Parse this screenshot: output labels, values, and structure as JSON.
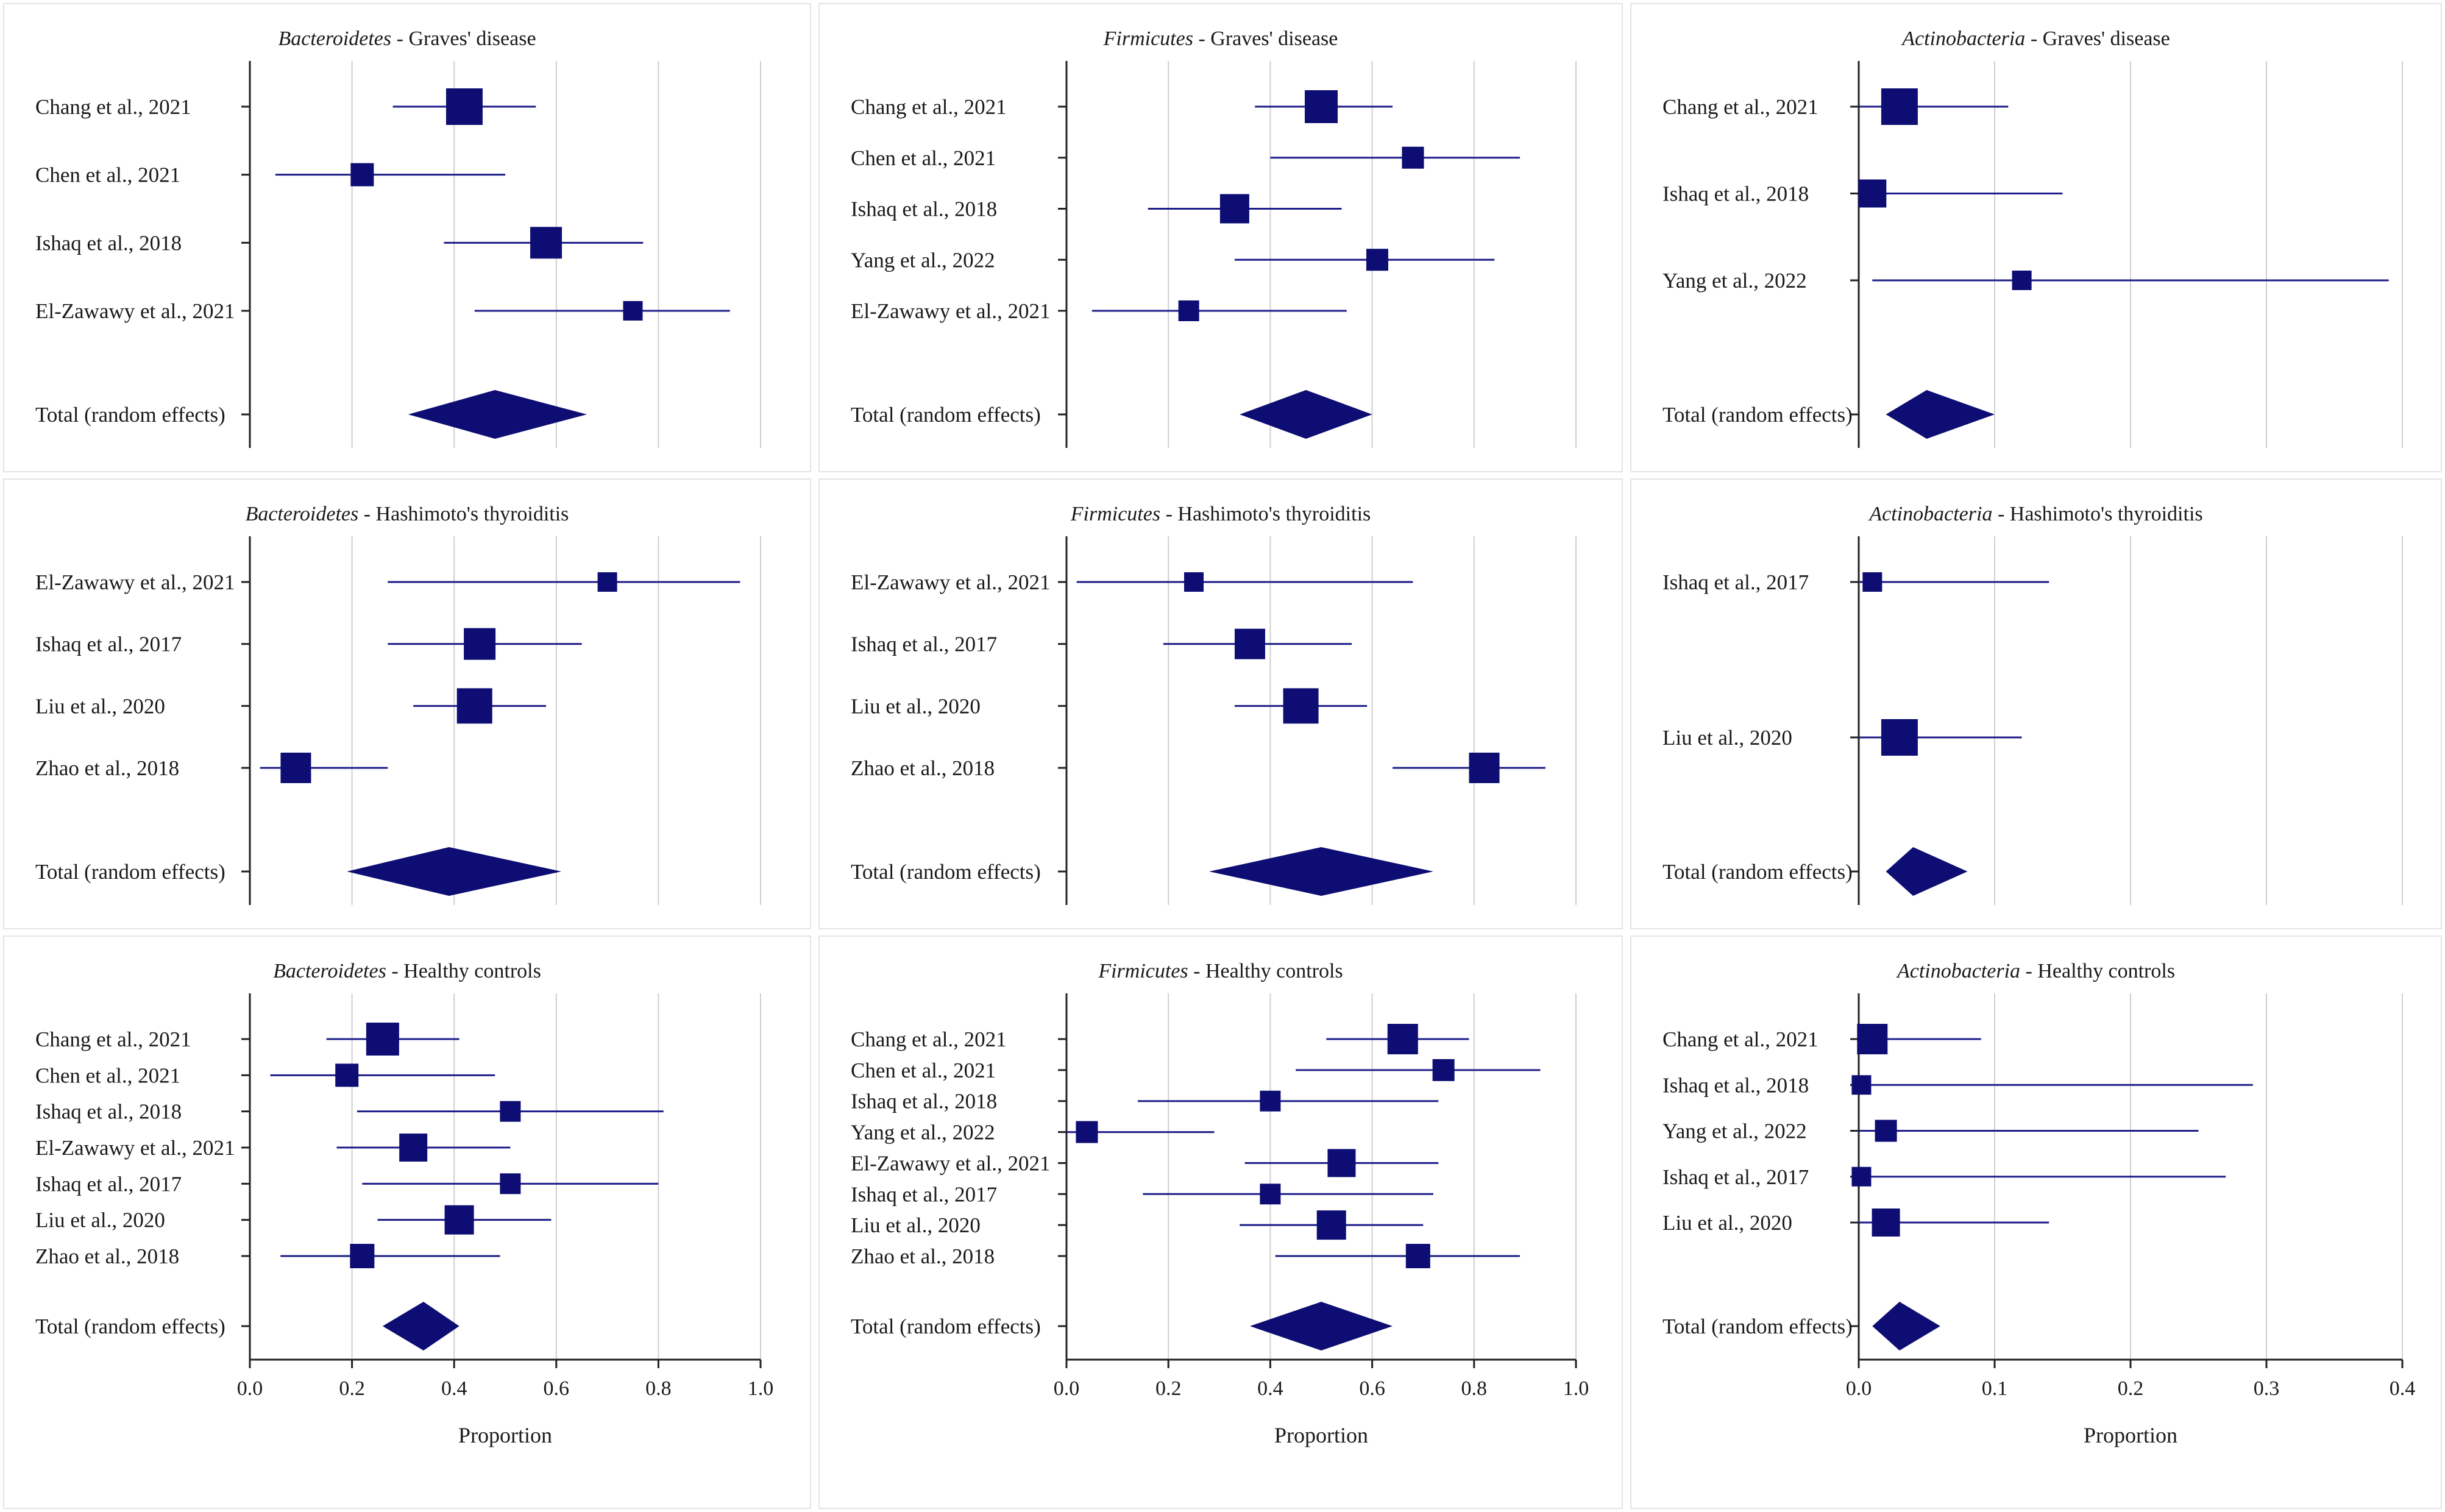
{
  "colors": {
    "mark": "#0d0d73",
    "whisker": "#1d1d8a",
    "grid": "#cfcfcf",
    "axis": "#222222",
    "panel_border": "#e4e4e4"
  },
  "chart_data": [
    {
      "type": "forest",
      "title_taxon": "Bacteroidetes",
      "title_group": " - Graves' disease",
      "xlabel": "",
      "xlim": [
        0,
        1
      ],
      "xticks": [
        0,
        0.2,
        0.4,
        0.6,
        0.8,
        1
      ],
      "studies": [
        {
          "label": "Chang et al., 2021",
          "estimate": 0.42,
          "ci": [
            0.28,
            0.56
          ],
          "weight": 1.0
        },
        {
          "label": "Chen et al., 2021",
          "estimate": 0.22,
          "ci": [
            0.05,
            0.5
          ],
          "weight": 0.45
        },
        {
          "label": "Ishaq et al., 2018",
          "estimate": 0.58,
          "ci": [
            0.38,
            0.77
          ],
          "weight": 0.8
        },
        {
          "label": "El-Zawawy et al., 2021",
          "estimate": 0.75,
          "ci": [
            0.44,
            0.94
          ],
          "weight": 0.3
        }
      ],
      "total": {
        "label": "Total (random effects)",
        "estimate": 0.48,
        "ci": [
          0.31,
          0.66
        ]
      }
    },
    {
      "type": "forest",
      "title_taxon": "Firmicutes",
      "title_group": " - Graves' disease",
      "xlabel": "",
      "xlim": [
        0,
        1
      ],
      "xticks": [
        0,
        0.2,
        0.4,
        0.6,
        0.8,
        1
      ],
      "studies": [
        {
          "label": "Chang et al., 2021",
          "estimate": 0.5,
          "ci": [
            0.37,
            0.64
          ],
          "weight": 0.85
        },
        {
          "label": "Chen et al., 2021",
          "estimate": 0.68,
          "ci": [
            0.4,
            0.89
          ],
          "weight": 0.4
        },
        {
          "label": "Ishaq et al., 2018",
          "estimate": 0.33,
          "ci": [
            0.16,
            0.54
          ],
          "weight": 0.7
        },
        {
          "label": "Yang et al., 2022",
          "estimate": 0.61,
          "ci": [
            0.33,
            0.84
          ],
          "weight": 0.4
        },
        {
          "label": "El-Zawawy et al., 2021",
          "estimate": 0.24,
          "ci": [
            0.05,
            0.55
          ],
          "weight": 0.35
        }
      ],
      "total": {
        "label": "Total (random effects)",
        "estimate": 0.47,
        "ci": [
          0.34,
          0.6
        ]
      }
    },
    {
      "type": "forest",
      "title_taxon": "Actinobacteria",
      "title_group": " - Graves' disease",
      "xlabel": "",
      "xlim": [
        0,
        0.4
      ],
      "xticks": [
        0,
        0.1,
        0.2,
        0.3,
        0.4
      ],
      "studies": [
        {
          "label": "Chang et al., 2021",
          "estimate": 0.03,
          "ci": [
            0.0,
            0.11
          ],
          "weight": 1.0
        },
        {
          "label": "Ishaq et al., 2018",
          "estimate": 0.01,
          "ci": [
            0.0,
            0.15
          ],
          "weight": 0.65
        },
        {
          "label": "Yang et al., 2022",
          "estimate": 0.12,
          "ci": [
            0.01,
            0.39
          ],
          "weight": 0.3
        }
      ],
      "total": {
        "label": "Total (random effects)",
        "estimate": 0.05,
        "ci": [
          0.02,
          0.1
        ]
      }
    },
    {
      "type": "forest",
      "title_taxon": "Bacteroidetes",
      "title_group": " - Hashimoto's thyroiditis",
      "xlabel": "",
      "xlim": [
        0,
        1
      ],
      "xticks": [
        0,
        0.2,
        0.4,
        0.6,
        0.8,
        1
      ],
      "studies": [
        {
          "label": "El-Zawawy et al., 2021",
          "estimate": 0.7,
          "ci": [
            0.27,
            0.96
          ],
          "weight": 0.3
        },
        {
          "label": "Ishaq et al., 2017",
          "estimate": 0.45,
          "ci": [
            0.27,
            0.65
          ],
          "weight": 0.8
        },
        {
          "label": "Liu et al., 2020",
          "estimate": 0.44,
          "ci": [
            0.32,
            0.58
          ],
          "weight": 0.95
        },
        {
          "label": "Zhao et al., 2018",
          "estimate": 0.09,
          "ci": [
            0.02,
            0.27
          ],
          "weight": 0.75
        }
      ],
      "total": {
        "label": "Total (random effects)",
        "estimate": 0.39,
        "ci": [
          0.19,
          0.61
        ]
      }
    },
    {
      "type": "forest",
      "title_taxon": "Firmicutes",
      "title_group": " - Hashimoto's thyroiditis",
      "xlabel": "",
      "xlim": [
        0,
        1
      ],
      "xticks": [
        0,
        0.2,
        0.4,
        0.6,
        0.8,
        1
      ],
      "studies": [
        {
          "label": "El-Zawawy et al., 2021",
          "estimate": 0.25,
          "ci": [
            0.02,
            0.68
          ],
          "weight": 0.3
        },
        {
          "label": "Ishaq et al., 2017",
          "estimate": 0.36,
          "ci": [
            0.19,
            0.56
          ],
          "weight": 0.75
        },
        {
          "label": "Liu et al., 2020",
          "estimate": 0.46,
          "ci": [
            0.33,
            0.59
          ],
          "weight": 0.95
        },
        {
          "label": "Zhao et al., 2018",
          "estimate": 0.82,
          "ci": [
            0.64,
            0.94
          ],
          "weight": 0.75
        }
      ],
      "total": {
        "label": "Total (random effects)",
        "estimate": 0.5,
        "ci": [
          0.28,
          0.72
        ]
      }
    },
    {
      "type": "forest",
      "title_taxon": "Actinobacteria",
      "title_group": " - Hashimoto's thyroiditis",
      "xlabel": "",
      "xlim": [
        0,
        0.4
      ],
      "xticks": [
        0,
        0.1,
        0.2,
        0.3,
        0.4
      ],
      "studies": [
        {
          "label": "Ishaq et al., 2017",
          "estimate": 0.01,
          "ci": [
            0.0,
            0.14
          ],
          "weight": 0.3
        },
        {
          "label": "Liu et al., 2020",
          "estimate": 0.03,
          "ci": [
            0.0,
            0.12
          ],
          "weight": 1.0
        }
      ],
      "total": {
        "label": "Total (random effects)",
        "estimate": 0.04,
        "ci": [
          0.02,
          0.08
        ]
      }
    },
    {
      "type": "forest",
      "title_taxon": "Bacteroidetes",
      "title_group": " - Healthy controls",
      "xlabel": "Proportion",
      "xlim": [
        0,
        1
      ],
      "xticks": [
        0,
        0.2,
        0.4,
        0.6,
        0.8,
        1
      ],
      "studies": [
        {
          "label": "Chang et al., 2021",
          "estimate": 0.26,
          "ci": [
            0.15,
            0.41
          ],
          "weight": 0.85
        },
        {
          "label": "Chen et al., 2021",
          "estimate": 0.19,
          "ci": [
            0.04,
            0.48
          ],
          "weight": 0.45
        },
        {
          "label": "Ishaq et al., 2018",
          "estimate": 0.51,
          "ci": [
            0.21,
            0.81
          ],
          "weight": 0.35
        },
        {
          "label": "El-Zawawy et al., 2021",
          "estimate": 0.32,
          "ci": [
            0.17,
            0.51
          ],
          "weight": 0.65
        },
        {
          "label": "Ishaq et al., 2017",
          "estimate": 0.51,
          "ci": [
            0.22,
            0.8
          ],
          "weight": 0.35
        },
        {
          "label": "Liu et al., 2020",
          "estimate": 0.41,
          "ci": [
            0.25,
            0.59
          ],
          "weight": 0.7
        },
        {
          "label": "Zhao et al., 2018",
          "estimate": 0.22,
          "ci": [
            0.06,
            0.49
          ],
          "weight": 0.5
        }
      ],
      "total": {
        "label": "Total (random effects)",
        "estimate": 0.34,
        "ci": [
          0.26,
          0.41
        ]
      }
    },
    {
      "type": "forest",
      "title_taxon": "Firmicutes",
      "title_group": " - Healthy controls",
      "xlabel": "Proportion",
      "xlim": [
        0,
        1
      ],
      "xticks": [
        0,
        0.2,
        0.4,
        0.6,
        0.8,
        1
      ],
      "studies": [
        {
          "label": "Chang et al., 2021",
          "estimate": 0.66,
          "ci": [
            0.51,
            0.79
          ],
          "weight": 0.75
        },
        {
          "label": "Chen et al., 2021",
          "estimate": 0.74,
          "ci": [
            0.45,
            0.93
          ],
          "weight": 0.4
        },
        {
          "label": "Ishaq et al., 2018",
          "estimate": 0.4,
          "ci": [
            0.14,
            0.73
          ],
          "weight": 0.35
        },
        {
          "label": "Yang et al., 2022",
          "estimate": 0.04,
          "ci": [
            0.0,
            0.29
          ],
          "weight": 0.4
        },
        {
          "label": "El-Zawawy et al., 2021",
          "estimate": 0.54,
          "ci": [
            0.35,
            0.73
          ],
          "weight": 0.65
        },
        {
          "label": "Ishaq et al., 2017",
          "estimate": 0.4,
          "ci": [
            0.15,
            0.72
          ],
          "weight": 0.35
        },
        {
          "label": "Liu et al., 2020",
          "estimate": 0.52,
          "ci": [
            0.34,
            0.7
          ],
          "weight": 0.7
        },
        {
          "label": "Zhao et al., 2018",
          "estimate": 0.69,
          "ci": [
            0.41,
            0.89
          ],
          "weight": 0.5
        }
      ],
      "total": {
        "label": "Total (random effects)",
        "estimate": 0.5,
        "ci": [
          0.36,
          0.64
        ]
      }
    },
    {
      "type": "forest",
      "title_taxon": "Actinobacteria",
      "title_group": " - Healthy controls",
      "xlabel": "Proportion",
      "xlim": [
        0,
        0.4
      ],
      "xticks": [
        0,
        0.1,
        0.2,
        0.3,
        0.4
      ],
      "studies": [
        {
          "label": "Chang et al., 2021",
          "estimate": 0.01,
          "ci": [
            0.0,
            0.09
          ],
          "weight": 0.75
        },
        {
          "label": "Ishaq et al., 2018",
          "estimate": 0.002,
          "ci": [
            0.0,
            0.29
          ],
          "weight": 0.3
        },
        {
          "label": "Yang et al., 2022",
          "estimate": 0.02,
          "ci": [
            0.0,
            0.25
          ],
          "weight": 0.4
        },
        {
          "label": "Ishaq et al., 2017",
          "estimate": 0.002,
          "ci": [
            0.0,
            0.27
          ],
          "weight": 0.3
        },
        {
          "label": "Liu et al., 2020",
          "estimate": 0.02,
          "ci": [
            0.0,
            0.14
          ],
          "weight": 0.65
        }
      ],
      "total": {
        "label": "Total (random effects)",
        "estimate": 0.03,
        "ci": [
          0.01,
          0.06
        ]
      }
    }
  ]
}
